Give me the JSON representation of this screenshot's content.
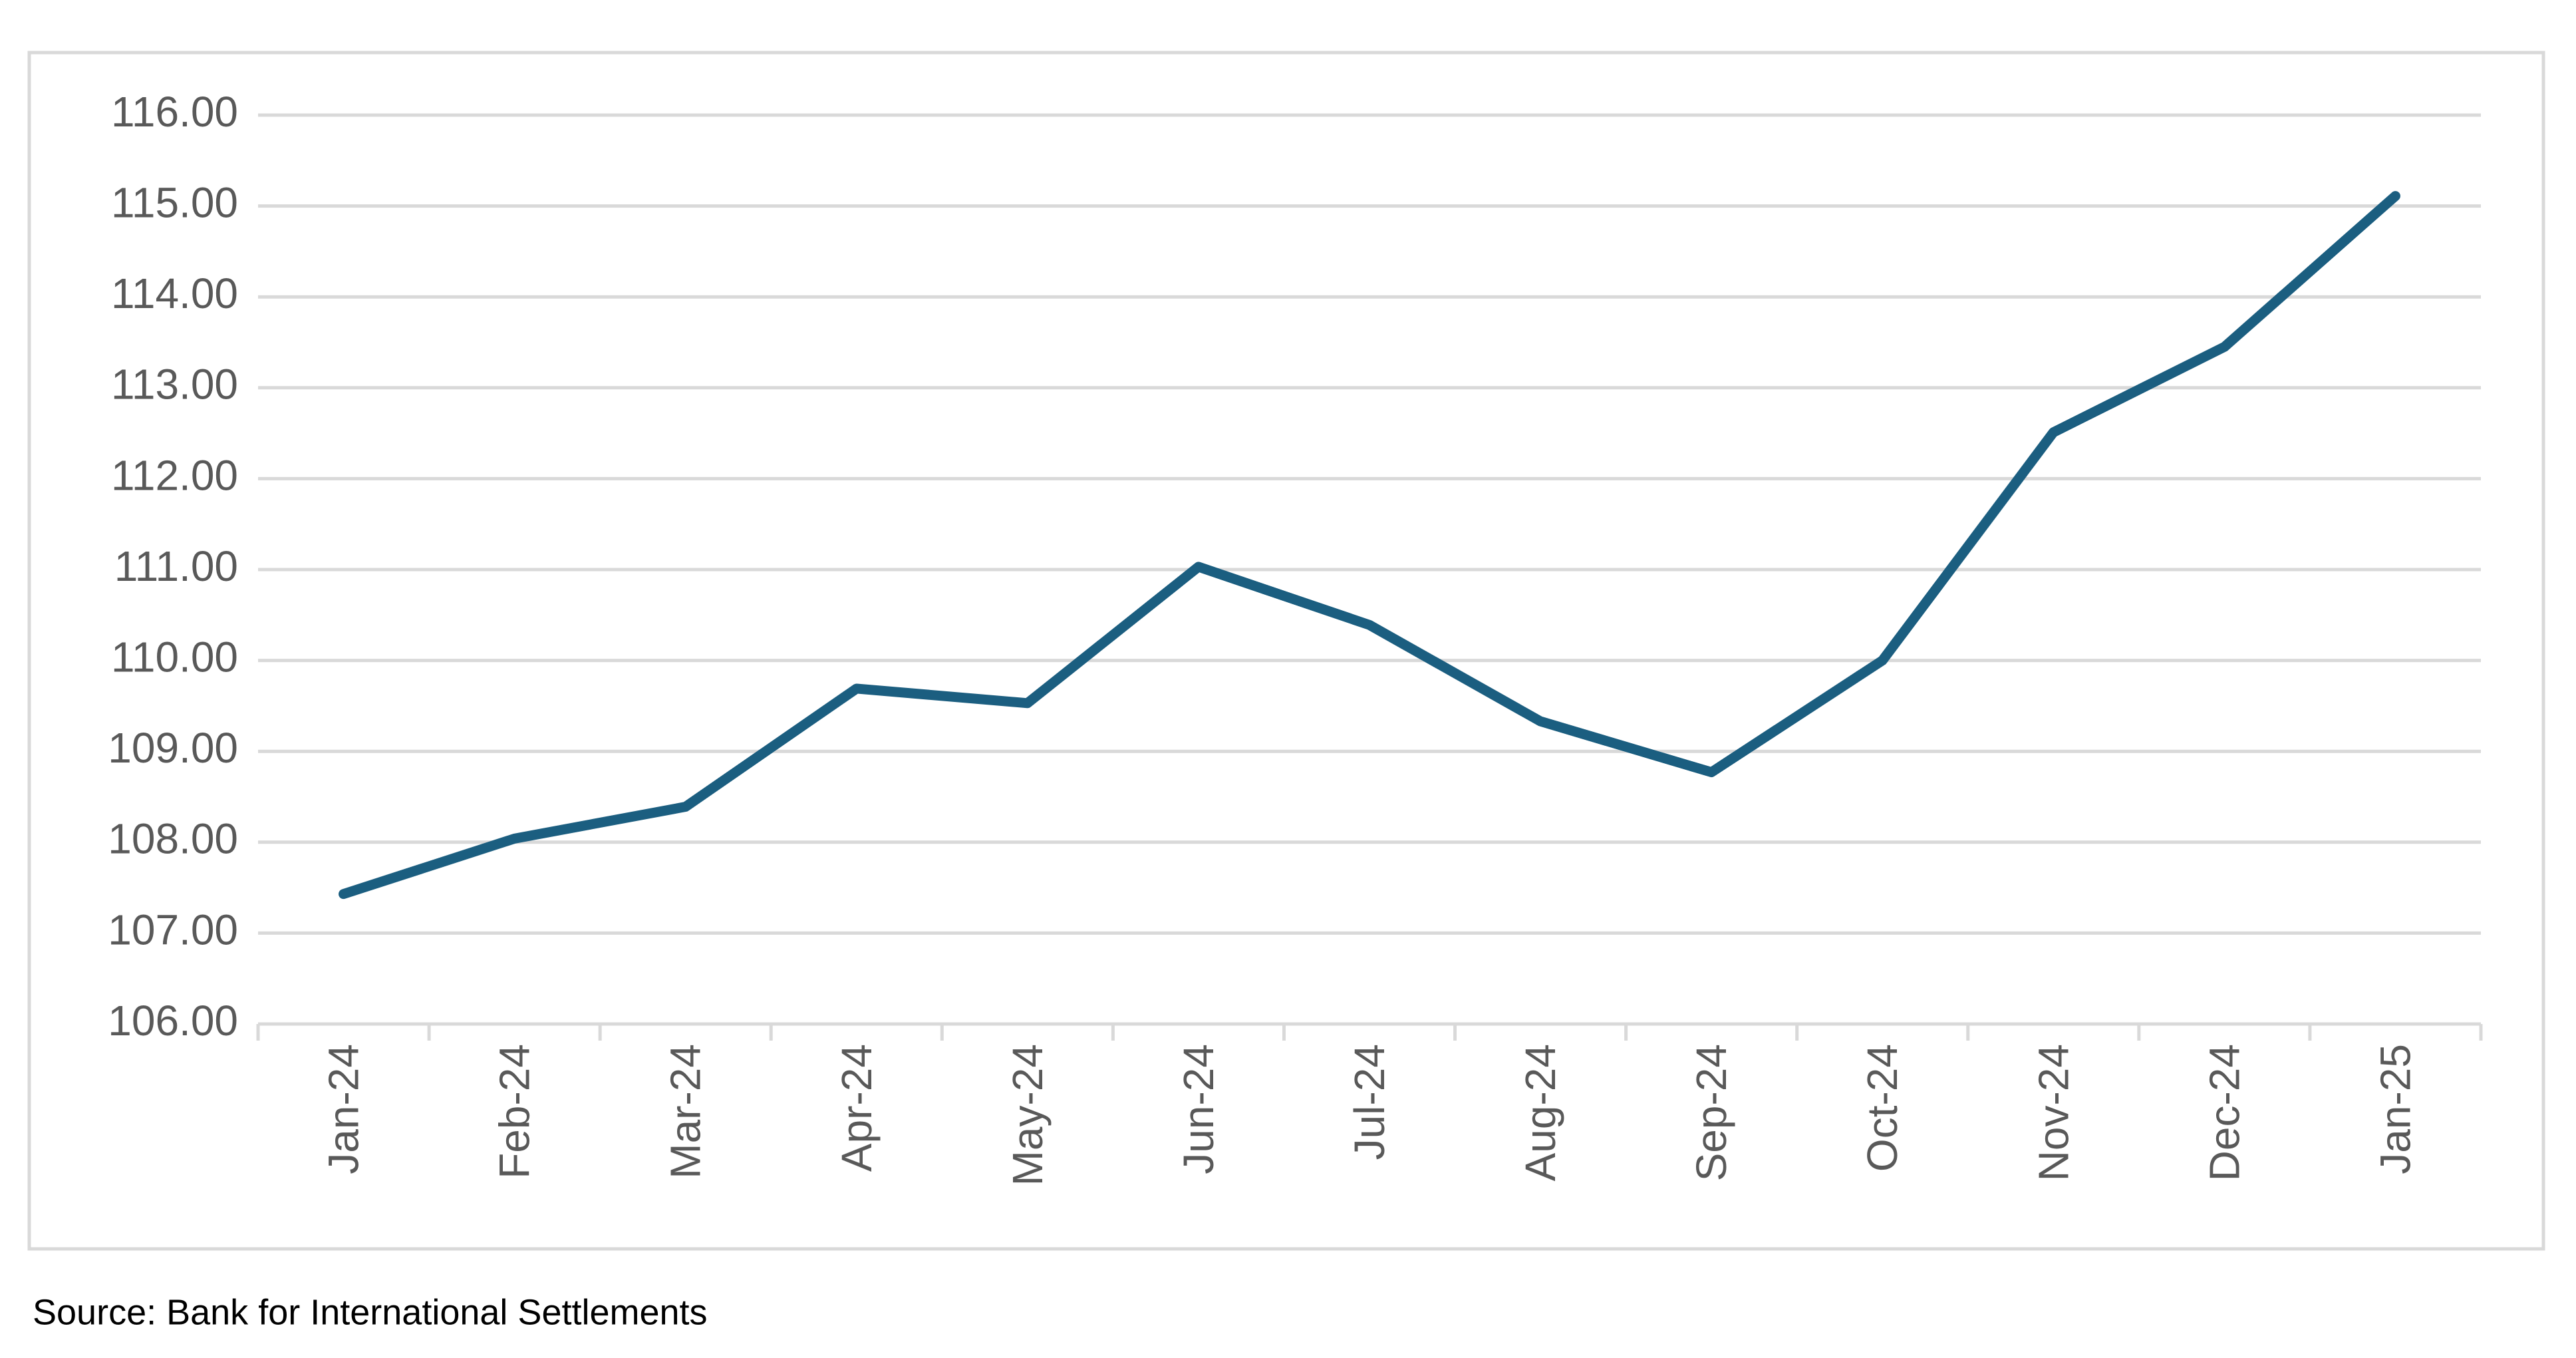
{
  "chart_data": {
    "type": "line",
    "categories": [
      "Jan-24",
      "Feb-24",
      "Mar-24",
      "Apr-24",
      "May-24",
      "Jun-24",
      "Jul-24",
      "Aug-24",
      "Sep-24",
      "Oct-24",
      "Nov-24",
      "Dec-24",
      "Jan-25"
    ],
    "series": [
      {
        "color": "#1b5e80",
        "values": [
          107.43,
          108.04,
          108.39,
          109.69,
          109.53,
          111.03,
          110.39,
          109.33,
          108.77,
          110.0,
          112.51,
          113.45,
          115.11
        ]
      }
    ],
    "ylim": [
      106,
      116
    ],
    "yticks": [
      {
        "value": 106,
        "label": "106.00"
      },
      {
        "value": 107,
        "label": "107.00"
      },
      {
        "value": 108,
        "label": "108.00"
      },
      {
        "value": 109,
        "label": "109.00"
      },
      {
        "value": 110,
        "label": "110.00"
      },
      {
        "value": 111,
        "label": "111.00"
      },
      {
        "value": 112,
        "label": "112.00"
      },
      {
        "value": 113,
        "label": "113.00"
      },
      {
        "value": 114,
        "label": "114.00"
      },
      {
        "value": 115,
        "label": "115.00"
      },
      {
        "value": 116,
        "label": "116.00"
      }
    ],
    "grid": true,
    "source": "Source: Bank for International Settlements"
  }
}
